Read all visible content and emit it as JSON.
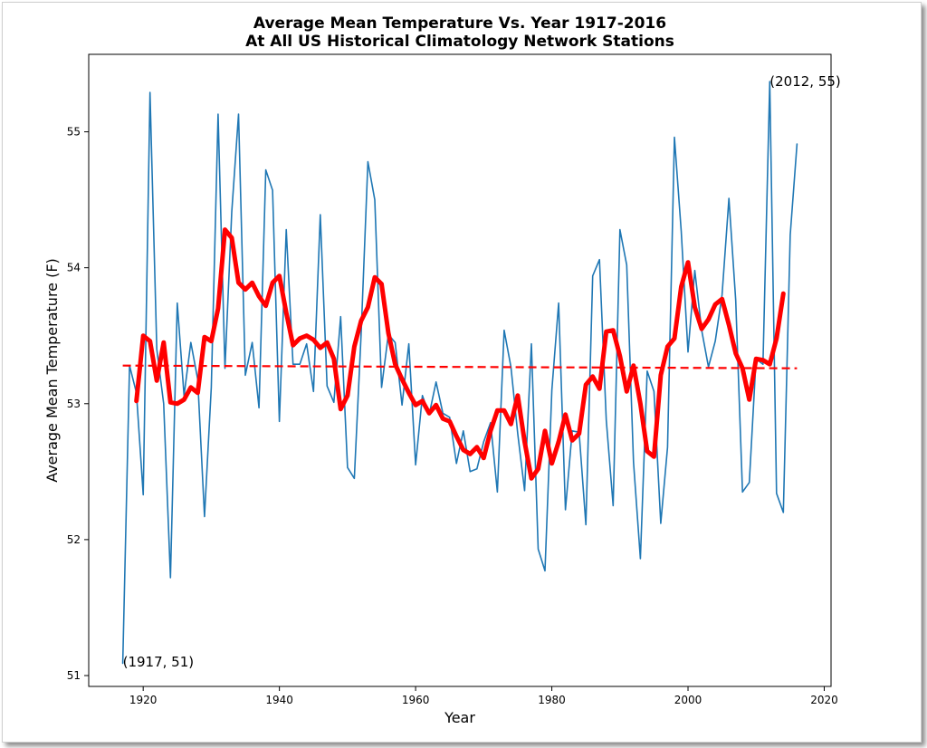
{
  "chart_data": {
    "type": "line",
    "title": "Average Mean Temperature Vs. Year 1917-2016",
    "subtitle": "At All US Historical Climatology Network Stations",
    "xlabel": "Year",
    "ylabel": "Average Mean Temperature (F)",
    "xlim": [
      1912,
      2021
    ],
    "ylim": [
      50.92,
      55.57
    ],
    "xticks": [
      1920,
      1940,
      1960,
      1980,
      2000,
      2020
    ],
    "yticks": [
      51,
      52,
      53,
      54,
      55
    ],
    "grid": false,
    "annotations": [
      {
        "text": "(1917, 51)",
        "x": 1917,
        "y": 51.1
      },
      {
        "text": "(2012, 55)",
        "x": 2012,
        "y": 55.37
      }
    ],
    "series": [
      {
        "style": "annual",
        "color": "#1f77b4",
        "x": [
          1917,
          1918,
          1919,
          1920,
          1921,
          1922,
          1923,
          1924,
          1925,
          1926,
          1927,
          1928,
          1929,
          1930,
          1931,
          1932,
          1933,
          1934,
          1935,
          1936,
          1937,
          1938,
          1939,
          1940,
          1941,
          1942,
          1943,
          1944,
          1945,
          1946,
          1947,
          1948,
          1949,
          1950,
          1951,
          1952,
          1953,
          1954,
          1955,
          1956,
          1957,
          1958,
          1959,
          1960,
          1961,
          1962,
          1963,
          1964,
          1965,
          1966,
          1967,
          1968,
          1969,
          1970,
          1971,
          1972,
          1973,
          1974,
          1975,
          1976,
          1977,
          1978,
          1979,
          1980,
          1981,
          1982,
          1983,
          1984,
          1985,
          1986,
          1987,
          1988,
          1989,
          1990,
          1991,
          1992,
          1993,
          1994,
          1995,
          1996,
          1997,
          1998,
          1999,
          2000,
          2001,
          2002,
          2003,
          2004,
          2005,
          2006,
          2007,
          2008,
          2009,
          2010,
          2011,
          2012,
          2013,
          2014,
          2015,
          2016
        ],
        "y": [
          51.09,
          53.28,
          53.08,
          52.33,
          55.29,
          53.4,
          53.0,
          51.72,
          53.74,
          53.06,
          53.45,
          53.18,
          52.17,
          53.12,
          55.13,
          53.26,
          54.41,
          55.13,
          53.21,
          53.45,
          52.97,
          54.72,
          54.57,
          52.87,
          54.28,
          53.29,
          53.29,
          53.44,
          53.09,
          54.39,
          53.13,
          53.01,
          53.64,
          52.53,
          52.45,
          53.51,
          54.78,
          54.5,
          53.12,
          53.51,
          53.45,
          52.99,
          53.44,
          52.55,
          53.06,
          52.92,
          53.16,
          52.93,
          52.9,
          52.56,
          52.8,
          52.5,
          52.52,
          52.72,
          52.86,
          52.35,
          53.54,
          53.27,
          52.78,
          52.36,
          53.44,
          51.93,
          51.77,
          53.1,
          53.74,
          52.22,
          52.8,
          52.79,
          52.11,
          53.94,
          54.06,
          52.88,
          52.25,
          54.28,
          54.02,
          52.57,
          51.86,
          53.24,
          53.09,
          52.12,
          52.68,
          54.96,
          54.27,
          53.38,
          53.98,
          53.54,
          53.27,
          53.46,
          53.8,
          54.51,
          53.76,
          52.35,
          52.42,
          53.33,
          53.29,
          55.37,
          52.34,
          52.2,
          54.24,
          54.91
        ]
      },
      {
        "style": "moving-average",
        "color": "#ff0000",
        "x": [
          1919,
          1920,
          1921,
          1922,
          1923,
          1924,
          1925,
          1926,
          1927,
          1928,
          1929,
          1930,
          1931,
          1932,
          1933,
          1934,
          1935,
          1936,
          1937,
          1938,
          1939,
          1940,
          1941,
          1942,
          1943,
          1944,
          1945,
          1946,
          1947,
          1948,
          1949,
          1950,
          1951,
          1952,
          1953,
          1954,
          1955,
          1956,
          1957,
          1958,
          1959,
          1960,
          1961,
          1962,
          1963,
          1964,
          1965,
          1966,
          1967,
          1968,
          1969,
          1970,
          1971,
          1972,
          1973,
          1974,
          1975,
          1976,
          1977,
          1978,
          1979,
          1980,
          1981,
          1982,
          1983,
          1984,
          1985,
          1986,
          1987,
          1988,
          1989,
          1990,
          1991,
          1992,
          1993,
          1994,
          1995,
          1996,
          1997,
          1998,
          1999,
          2000,
          2001,
          2002,
          2003,
          2004,
          2005,
          2006,
          2007,
          2008,
          2009,
          2010,
          2011,
          2012,
          2013,
          2014
        ],
        "y": [
          53.02,
          53.5,
          53.46,
          53.17,
          53.45,
          53.01,
          53.0,
          53.03,
          53.12,
          53.08,
          53.49,
          53.46,
          53.7,
          54.28,
          54.22,
          53.89,
          53.84,
          53.89,
          53.79,
          53.72,
          53.89,
          53.94,
          53.67,
          53.43,
          53.48,
          53.5,
          53.47,
          53.41,
          53.45,
          53.33,
          52.96,
          53.06,
          53.42,
          53.61,
          53.71,
          53.93,
          53.88,
          53.52,
          53.29,
          53.18,
          53.08,
          52.99,
          53.02,
          52.93,
          52.99,
          52.89,
          52.87,
          52.76,
          52.66,
          52.63,
          52.68,
          52.6,
          52.8,
          52.95,
          52.95,
          52.85,
          53.06,
          52.72,
          52.45,
          52.52,
          52.8,
          52.56,
          52.72,
          52.92,
          52.73,
          52.78,
          53.14,
          53.2,
          53.11,
          53.53,
          53.54,
          53.35,
          53.09,
          53.28,
          53.0,
          52.65,
          52.61,
          53.21,
          53.42,
          53.48,
          53.86,
          54.04,
          53.71,
          53.55,
          53.62,
          53.73,
          53.77,
          53.58,
          53.37,
          53.26,
          53.03,
          53.33,
          53.32,
          53.29,
          53.48,
          53.81
        ]
      },
      {
        "style": "trend",
        "color": "#ff0000",
        "x": [
          1917,
          2016
        ],
        "y": [
          53.28,
          53.26
        ]
      }
    ]
  }
}
